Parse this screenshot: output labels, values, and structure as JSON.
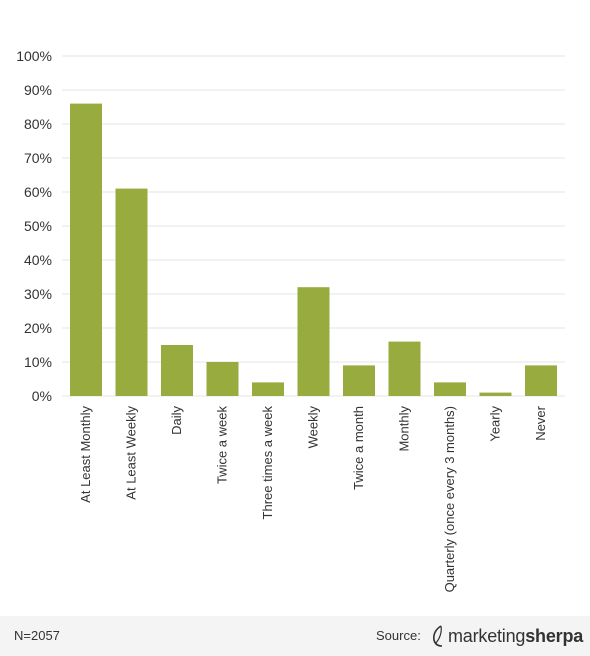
{
  "chart_data": {
    "type": "bar",
    "categories": [
      "At Least Monthly",
      "At Least Weekly",
      "Daily",
      "Twice a week",
      "Three times a week",
      "Weekly",
      "Twice a month",
      "Monthly",
      "Quarterly (once every 3 months)",
      "Yearly",
      "Never"
    ],
    "values": [
      86,
      61,
      15,
      10,
      4,
      32,
      9,
      16,
      4,
      1,
      9
    ],
    "title": "",
    "xlabel": "",
    "ylabel": "",
    "ylim": [
      0,
      100
    ],
    "y_ticks": [
      "0%",
      "10%",
      "20%",
      "30%",
      "40%",
      "50%",
      "60%",
      "70%",
      "80%",
      "90%",
      "100%"
    ],
    "grid": true,
    "legend": "none",
    "bar_color": "#97ab3e",
    "grid_color": "#e6e6e6"
  },
  "footer": {
    "sample_size": "N=2057",
    "source_label": "Source:",
    "brand_light": "marketing",
    "brand_bold": "sherpa"
  }
}
